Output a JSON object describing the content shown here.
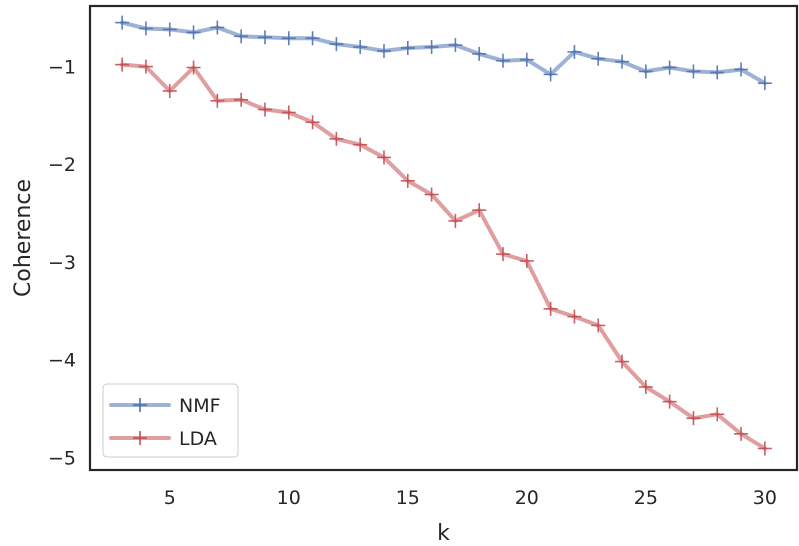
{
  "chart_data": {
    "type": "line",
    "xlabel": "k",
    "ylabel": "Coherence",
    "xlim": [
      1.65,
      31.35
    ],
    "ylim": [
      -5.13,
      -0.38
    ],
    "xticks": [
      5,
      10,
      15,
      20,
      25,
      30
    ],
    "yticks": [
      -1,
      -2,
      -3,
      -4,
      -5
    ],
    "grid": false,
    "legend_position": "lower-left",
    "x": [
      3,
      4,
      5,
      6,
      7,
      8,
      9,
      10,
      11,
      12,
      13,
      14,
      15,
      16,
      17,
      18,
      19,
      20,
      21,
      22,
      23,
      24,
      25,
      26,
      27,
      28,
      29,
      30
    ],
    "series": [
      {
        "name": "NMF",
        "color": "#4c72b0",
        "values": [
          -0.55,
          -0.61,
          -0.62,
          -0.65,
          -0.6,
          -0.69,
          -0.7,
          -0.71,
          -0.71,
          -0.77,
          -0.8,
          -0.84,
          -0.81,
          -0.8,
          -0.78,
          -0.87,
          -0.94,
          -0.93,
          -1.08,
          -0.85,
          -0.92,
          -0.95,
          -1.05,
          -1.01,
          -1.05,
          -1.06,
          -1.03,
          -1.17
        ]
      },
      {
        "name": "LDA",
        "color": "#c44e52",
        "values": [
          -0.98,
          -1.0,
          -1.25,
          -1.01,
          -1.35,
          -1.34,
          -1.44,
          -1.47,
          -1.57,
          -1.74,
          -1.8,
          -1.93,
          -2.17,
          -2.31,
          -2.58,
          -2.47,
          -2.92,
          -2.99,
          -3.48,
          -3.56,
          -3.65,
          -4.02,
          -4.28,
          -4.43,
          -4.6,
          -4.56,
          -4.76,
          -4.91
        ]
      }
    ]
  }
}
